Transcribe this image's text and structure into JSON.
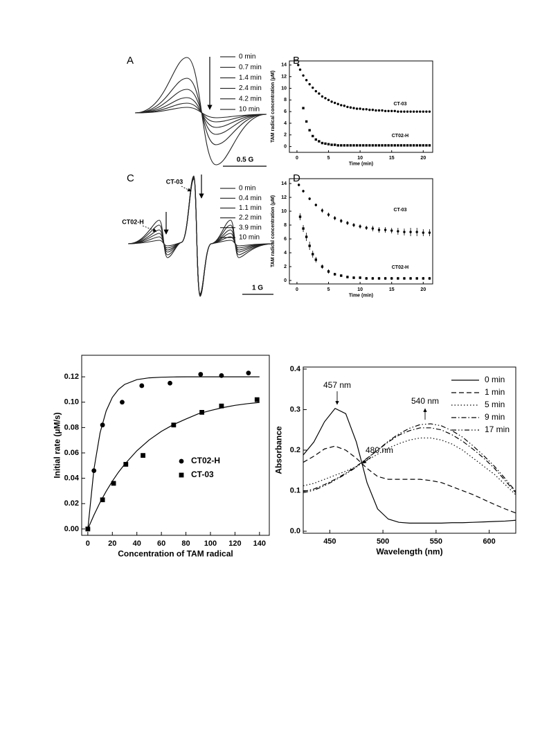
{
  "chart_data": [
    {
      "type": "spectrum",
      "panel": "A",
      "legend": [
        "0 min",
        "0.7 min",
        "1.4 min",
        "2.4 min",
        "4.2 min",
        "10 min"
      ],
      "scale_bar": "0.5 G"
    },
    {
      "type": "scatter",
      "panel": "B",
      "xlabel": "Time (min)",
      "ylabel": "TAM radical concentration (μM)",
      "xlim": [
        -1.2,
        21.5
      ],
      "xticks": [
        0,
        5,
        10,
        15,
        20
      ],
      "ylim": [
        -1,
        14.7
      ],
      "yticks": [
        0,
        2,
        4,
        6,
        8,
        10,
        12,
        14
      ],
      "series": [
        {
          "name": "CT-03",
          "marker": "circle",
          "color": "#000000",
          "x": [
            0.2,
            0.5,
            1,
            1.5,
            2,
            2.5,
            3,
            3.5,
            4,
            4.5,
            5,
            5.5,
            6,
            6.5,
            7,
            7.5,
            8,
            8.5,
            9,
            9.5,
            10,
            10.5,
            11,
            11.5,
            12,
            12.5,
            13,
            13.5,
            14,
            14.5,
            15,
            15.5,
            16,
            16.5,
            17,
            17.5,
            18,
            18.5,
            19,
            19.5,
            20,
            20.5,
            21
          ],
          "values": [
            14,
            13.2,
            12.2,
            11.4,
            10.7,
            10.1,
            9.5,
            9.1,
            8.6,
            8.3,
            8.0,
            7.7,
            7.5,
            7.3,
            7.1,
            7.0,
            6.8,
            6.7,
            6.6,
            6.5,
            6.5,
            6.4,
            6.4,
            6.3,
            6.3,
            6.2,
            6.2,
            6.2,
            6.1,
            6.1,
            6.1,
            6.1,
            6.0,
            6.0,
            6.0,
            6.0,
            6.0,
            6.0,
            6.0,
            6.0,
            6.0,
            6.0,
            6.0
          ]
        },
        {
          "name": "CT02-H",
          "marker": "square",
          "color": "#000000",
          "x": [
            1,
            1.5,
            2,
            2.5,
            3,
            3.5,
            4,
            4.5,
            5,
            5.5,
            6,
            6.5,
            7,
            7.5,
            8,
            8.5,
            9,
            9.5,
            10,
            10.5,
            11,
            11.5,
            12,
            12.5,
            13,
            13.5,
            14,
            14.5,
            15,
            15.5,
            16,
            16.5,
            17,
            17.5,
            18,
            18.5,
            19,
            19.5,
            20,
            20.5,
            21
          ],
          "values": [
            6.6,
            4.3,
            2.8,
            1.8,
            1.2,
            0.9,
            0.6,
            0.5,
            0.4,
            0.3,
            0.3,
            0.2,
            0.2,
            0.2,
            0.2,
            0.2,
            0.2,
            0.2,
            0.2,
            0.2,
            0.2,
            0.2,
            0.2,
            0.2,
            0.2,
            0.2,
            0.2,
            0.2,
            0.2,
            0.2,
            0.2,
            0.2,
            0.2,
            0.2,
            0.2,
            0.2,
            0.2,
            0.2,
            0.2,
            0.2,
            0.2
          ]
        }
      ]
    },
    {
      "type": "spectrum",
      "panel": "C",
      "legend": [
        "0 min",
        "0.4 min",
        "1.1 min",
        "2.2 min",
        "3.9 min",
        "10 min"
      ],
      "scale_bar": "1 G",
      "annotations": [
        "CT-03",
        "CT02-H"
      ]
    },
    {
      "type": "scatter",
      "panel": "D",
      "xlabel": "Time (min)",
      "ylabel": "TAM radical concentration (μM)",
      "xlim": [
        -1.2,
        21.5
      ],
      "xticks": [
        0,
        5,
        10,
        15,
        20
      ],
      "ylim": [
        -0.5,
        14.7
      ],
      "yticks": [
        0,
        2,
        4,
        6,
        8,
        10,
        12,
        14
      ],
      "series": [
        {
          "name": "CT-03",
          "marker": "circle",
          "color": "#000000",
          "x": [
            0.3,
            1,
            2,
            3,
            4,
            5,
            6,
            7,
            8,
            9,
            10,
            11,
            12,
            13,
            14,
            15,
            16,
            17,
            18,
            19,
            20,
            21
          ],
          "values": [
            13.8,
            12.9,
            11.8,
            10.9,
            10.1,
            9.5,
            9.0,
            8.6,
            8.3,
            8.0,
            7.8,
            7.6,
            7.5,
            7.3,
            7.3,
            7.2,
            7.1,
            7.0,
            7.0,
            7.0,
            6.9,
            6.9
          ],
          "errors": [
            0.2,
            0.2,
            0.2,
            0.2,
            0.3,
            0.3,
            0.3,
            0.3,
            0.3,
            0.3,
            0.3,
            0.3,
            0.4,
            0.4,
            0.4,
            0.4,
            0.5,
            0.5,
            0.6,
            0.6,
            0.5,
            0.5
          ]
        },
        {
          "name": "CT02-H",
          "marker": "square",
          "color": "#000000",
          "x": [
            0.5,
            1,
            1.5,
            2,
            2.5,
            3,
            4,
            5,
            6,
            7,
            8,
            9,
            10,
            11,
            12,
            13,
            14,
            15,
            16,
            17,
            18,
            19,
            20,
            21
          ],
          "values": [
            9.2,
            7.5,
            6.3,
            5.0,
            3.8,
            3.0,
            2.0,
            1.3,
            0.9,
            0.7,
            0.5,
            0.4,
            0.4,
            0.3,
            0.3,
            0.3,
            0.3,
            0.3,
            0.3,
            0.3,
            0.3,
            0.3,
            0.3,
            0.3
          ],
          "errors": [
            0.5,
            0.5,
            0.6,
            0.6,
            0.5,
            0.4,
            0.3,
            0.3,
            0.2,
            0.2,
            0.2,
            0.2,
            0.2,
            0.2,
            0.2,
            0.2,
            0.2,
            0.2,
            0.2,
            0.2,
            0.2,
            0.2,
            0.2,
            0.2
          ]
        }
      ]
    },
    {
      "type": "scatter",
      "xlabel": "Concentration of TAM radical",
      "ylabel": "Initial rate (μM/s)",
      "xlim": [
        -5,
        148
      ],
      "xticks": [
        0,
        20,
        40,
        60,
        80,
        100,
        120,
        140
      ],
      "ylim": [
        -0.005,
        0.137
      ],
      "yticks": [
        {
          "value": 0,
          "label": "0.00"
        },
        0.02,
        0.04,
        0.06,
        0.08,
        {
          "value": 0.1,
          "label": "0.10"
        },
        0.12
      ],
      "legend": "center-right",
      "series": [
        {
          "name": "CT02-H",
          "marker": "circle",
          "color": "#000000",
          "x": [
            0,
            5,
            12,
            28,
            44,
            67,
            92,
            109,
            131
          ],
          "values": [
            0,
            0.046,
            0.082,
            0.1,
            0.113,
            0.115,
            0.122,
            0.121,
            0.123
          ],
          "fit": {
            "x": [
              0,
              5,
              10,
              15,
              20,
              25,
              30,
              40,
              50,
              60,
              70,
              80,
              90,
              100,
              110,
              120,
              130,
              140
            ],
            "values": [
              0,
              0.0472,
              0.0759,
              0.0932,
              0.1038,
              0.1101,
              0.114,
              0.1178,
              0.1192,
              0.1197,
              0.1199,
              0.12,
              0.12,
              0.12,
              0.12,
              0.12,
              0.12,
              0.12
            ]
          }
        },
        {
          "name": "CT-03",
          "marker": "square",
          "color": "#000000",
          "x": [
            0,
            12,
            21,
            31,
            45,
            70,
            93,
            109,
            138
          ],
          "values": [
            0,
            0.023,
            0.036,
            0.051,
            0.058,
            0.082,
            0.092,
            0.097,
            0.102
          ],
          "fit": {
            "x": [
              0,
              5,
              10,
              15,
              20,
              25,
              30,
              40,
              50,
              60,
              70,
              80,
              90,
              100,
              110,
              120,
              130,
              140
            ],
            "values": [
              0,
              0.011,
              0.021,
              0.0298,
              0.0377,
              0.0448,
              0.051,
              0.0617,
              0.0702,
              0.077,
              0.0824,
              0.0867,
              0.0908,
              0.0934,
              0.0957,
              0.0975,
              0.0988,
              0.0998
            ]
          }
        }
      ]
    },
    {
      "type": "line",
      "xlabel": "Wavelength (nm)",
      "ylabel": "Absorbance",
      "xlim": [
        425,
        625
      ],
      "xticks": [
        450,
        500,
        550,
        600
      ],
      "ylim": [
        -0.005,
        0.405
      ],
      "yticks": [
        {
          "value": 0,
          "label": "0.0"
        },
        0.1,
        0.2,
        0.3,
        0.4
      ],
      "legend": "top-right",
      "annotations": [
        "457 nm",
        "480 nm",
        "540 nm"
      ],
      "x": [
        425,
        435,
        445,
        455,
        465,
        475,
        485,
        495,
        505,
        515,
        525,
        535,
        545,
        555,
        565,
        575,
        585,
        595,
        605,
        615,
        625
      ],
      "series": [
        {
          "name": "0 min",
          "dash": "solid",
          "color": "#000000",
          "values": [
            0.188,
            0.22,
            0.27,
            0.303,
            0.29,
            0.22,
            0.12,
            0.055,
            0.03,
            0.022,
            0.02,
            0.02,
            0.02,
            0.02,
            0.021,
            0.021,
            0.022,
            0.023,
            0.024,
            0.025,
            0.027
          ]
        },
        {
          "name": "1 min",
          "dash": "dashed",
          "color": "#000000",
          "values": [
            0.17,
            0.185,
            0.203,
            0.21,
            0.2,
            0.18,
            0.155,
            0.135,
            0.128,
            0.128,
            0.128,
            0.128,
            0.125,
            0.12,
            0.11,
            0.1,
            0.09,
            0.078,
            0.066,
            0.055,
            0.045
          ]
        },
        {
          "name": "5 min",
          "dash": "dotted",
          "color": "#000000",
          "values": [
            0.112,
            0.118,
            0.128,
            0.138,
            0.148,
            0.16,
            0.175,
            0.19,
            0.205,
            0.216,
            0.225,
            0.23,
            0.23,
            0.225,
            0.215,
            0.2,
            0.18,
            0.16,
            0.14,
            0.115,
            0.09
          ]
        },
        {
          "name": "9 min",
          "dash": "dashdot",
          "color": "#000000",
          "values": [
            0.098,
            0.104,
            0.115,
            0.128,
            0.143,
            0.16,
            0.18,
            0.2,
            0.22,
            0.237,
            0.248,
            0.255,
            0.255,
            0.25,
            0.238,
            0.222,
            0.202,
            0.18,
            0.155,
            0.125,
            0.095
          ]
        },
        {
          "name": "17 min",
          "dash": "dashdotdot",
          "color": "#000000",
          "values": [
            0.095,
            0.101,
            0.112,
            0.126,
            0.141,
            0.158,
            0.179,
            0.2,
            0.222,
            0.24,
            0.254,
            0.263,
            0.265,
            0.26,
            0.248,
            0.232,
            0.21,
            0.186,
            0.16,
            0.13,
            0.098
          ]
        }
      ]
    }
  ]
}
